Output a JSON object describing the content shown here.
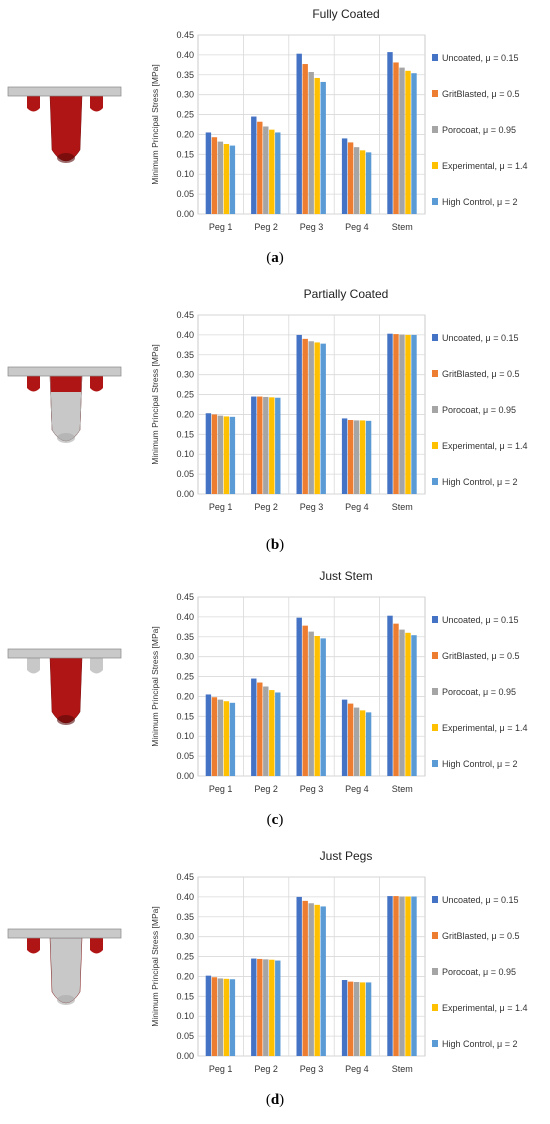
{
  "colors": {
    "uncoated": "#4472c4",
    "gritblasted": "#ed7d31",
    "porocoat": "#a5a5a5",
    "experimental": "#ffc000",
    "highcontrol": "#5b9bd5",
    "coated_red": "#b01515",
    "uncoated_grey": "#c8c8c8"
  },
  "chart_data": [
    {
      "type": "bar",
      "title": "Fully Coated",
      "ylabel": "Minimum Principal Stress [MPa]",
      "ylim": [
        0,
        0.45
      ],
      "yticks": [
        "0.00",
        "0.05",
        "0.10",
        "0.15",
        "0.20",
        "0.25",
        "0.30",
        "0.35",
        "0.40",
        "0.45"
      ],
      "categories": [
        "Peg 1",
        "Peg 2",
        "Peg 3",
        "Peg 4",
        "Stem"
      ],
      "grid": true,
      "legend": "right",
      "series": [
        {
          "name": "Uncoated, μ = 0.15",
          "values": [
            0.205,
            0.245,
            0.403,
            0.19,
            0.407
          ]
        },
        {
          "name": "GritBlasted, μ = 0.5",
          "values": [
            0.193,
            0.232,
            0.377,
            0.18,
            0.381
          ]
        },
        {
          "name": "Porocoat, μ = 0.95",
          "values": [
            0.182,
            0.22,
            0.357,
            0.168,
            0.368
          ]
        },
        {
          "name": "Experimental, μ = 1.4",
          "values": [
            0.176,
            0.212,
            0.342,
            0.16,
            0.36
          ]
        },
        {
          "name": "High Control, μ = 2",
          "values": [
            0.172,
            0.205,
            0.332,
            0.155,
            0.354
          ]
        }
      ],
      "caption": "a",
      "implant": {
        "stem_coated": true,
        "pegs_coated": true
      }
    },
    {
      "type": "bar",
      "title": "Partially Coated",
      "ylabel": "Minimum Principal Stress [MPa]",
      "ylim": [
        0,
        0.45
      ],
      "yticks": [
        "0.00",
        "0.05",
        "0.10",
        "0.15",
        "0.20",
        "0.25",
        "0.30",
        "0.35",
        "0.40",
        "0.45"
      ],
      "categories": [
        "Peg 1",
        "Peg 2",
        "Peg 3",
        "Peg 4",
        "Stem"
      ],
      "grid": true,
      "legend": "right",
      "series": [
        {
          "name": "Uncoated, μ = 0.15",
          "values": [
            0.203,
            0.245,
            0.4,
            0.19,
            0.403
          ]
        },
        {
          "name": "GritBlasted, μ = 0.5",
          "values": [
            0.2,
            0.245,
            0.39,
            0.186,
            0.402
          ]
        },
        {
          "name": "Porocoat, μ = 0.95",
          "values": [
            0.197,
            0.244,
            0.384,
            0.185,
            0.401
          ]
        },
        {
          "name": "Experimental, μ = 1.4",
          "values": [
            0.195,
            0.243,
            0.381,
            0.185,
            0.4
          ]
        },
        {
          "name": "High Control, μ = 2",
          "values": [
            0.194,
            0.242,
            0.378,
            0.184,
            0.4
          ]
        }
      ],
      "caption": "b",
      "implant": {
        "stem_coated": "partial",
        "pegs_coated": true
      }
    },
    {
      "type": "bar",
      "title": "Just Stem",
      "ylabel": "Minimum Principal Stress [MPa]",
      "ylim": [
        0,
        0.45
      ],
      "yticks": [
        "0.00",
        "0.05",
        "0.10",
        "0.15",
        "0.20",
        "0.25",
        "0.30",
        "0.35",
        "0.40",
        "0.45"
      ],
      "categories": [
        "Peg 1",
        "Peg 2",
        "Peg 3",
        "Peg 4",
        "Stem"
      ],
      "grid": true,
      "legend": "right",
      "series": [
        {
          "name": "Uncoated, μ = 0.15",
          "values": [
            0.205,
            0.245,
            0.398,
            0.192,
            0.403
          ]
        },
        {
          "name": "GritBlasted, μ = 0.5",
          "values": [
            0.198,
            0.235,
            0.378,
            0.182,
            0.383
          ]
        },
        {
          "name": "Porocoat, μ = 0.95",
          "values": [
            0.192,
            0.225,
            0.363,
            0.172,
            0.368
          ]
        },
        {
          "name": "Experimental, μ = 1.4",
          "values": [
            0.188,
            0.216,
            0.352,
            0.165,
            0.36
          ]
        },
        {
          "name": "High Control, μ = 2",
          "values": [
            0.184,
            0.21,
            0.346,
            0.16,
            0.354
          ]
        }
      ],
      "caption": "c",
      "implant": {
        "stem_coated": true,
        "pegs_coated": false
      }
    },
    {
      "type": "bar",
      "title": "Just Pegs",
      "ylabel": "Minimum Principal Stress [MPa]",
      "ylim": [
        0,
        0.45
      ],
      "yticks": [
        "0.00",
        "0.05",
        "0.10",
        "0.15",
        "0.20",
        "0.25",
        "0.30",
        "0.35",
        "0.40",
        "0.45"
      ],
      "categories": [
        "Peg 1",
        "Peg 2",
        "Peg 3",
        "Peg 4",
        "Stem"
      ],
      "grid": true,
      "legend": "right",
      "series": [
        {
          "name": "Uncoated, μ = 0.15",
          "values": [
            0.202,
            0.245,
            0.4,
            0.191,
            0.402
          ]
        },
        {
          "name": "GritBlasted, μ = 0.5",
          "values": [
            0.198,
            0.244,
            0.39,
            0.187,
            0.402
          ]
        },
        {
          "name": "Porocoat, μ = 0.95",
          "values": [
            0.195,
            0.243,
            0.384,
            0.186,
            0.401
          ]
        },
        {
          "name": "Experimental, μ = 1.4",
          "values": [
            0.194,
            0.242,
            0.38,
            0.185,
            0.401
          ]
        },
        {
          "name": "High Control, μ = 2",
          "values": [
            0.193,
            0.24,
            0.376,
            0.185,
            0.401
          ]
        }
      ],
      "caption": "d",
      "implant": {
        "stem_coated": false,
        "pegs_coated": true
      }
    }
  ]
}
